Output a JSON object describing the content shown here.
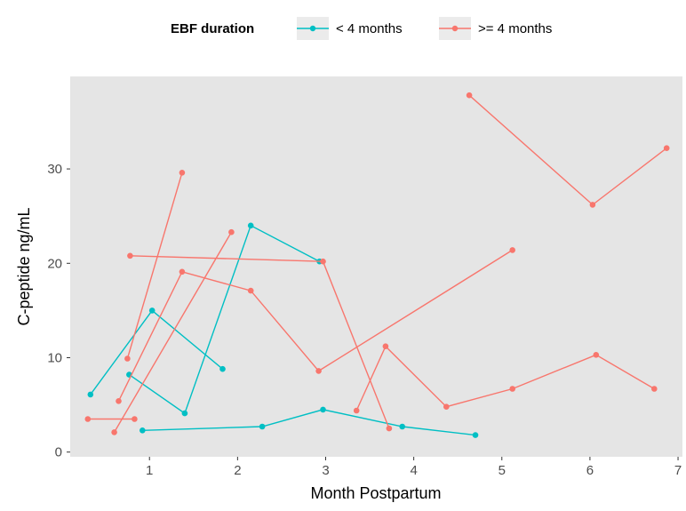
{
  "chart_data": {
    "type": "line",
    "xlabel": "Month Postpartum",
    "ylabel": "C-peptide ng/mL",
    "xlim": [
      0.1,
      7.05
    ],
    "ylim": [
      -0.5,
      39.8
    ],
    "x_ticks": [
      1,
      2,
      3,
      4,
      5,
      6,
      7
    ],
    "y_ticks": [
      0,
      10,
      20,
      30
    ],
    "x_tick_labels": [
      "1",
      "2",
      "3",
      "4",
      "5",
      "6",
      "7"
    ],
    "y_tick_labels": [
      "0",
      "10",
      "20",
      "30"
    ],
    "grid": false,
    "background": "gray",
    "legend": {
      "position": "top",
      "title": "EBF duration",
      "entries": [
        {
          "label": "< 4 months",
          "color": "#00bfc4"
        },
        {
          "label": ">= 4 months",
          "color": "#f8766d"
        }
      ]
    },
    "series": [
      {
        "group": "< 4 months",
        "color": "#00bfc4",
        "x": [
          0.33,
          1.03,
          1.83
        ],
        "y": [
          6.1,
          15.0,
          8.8
        ]
      },
      {
        "group": "< 4 months",
        "color": "#00bfc4",
        "x": [
          0.77,
          1.4,
          2.15,
          2.93
        ],
        "y": [
          8.2,
          4.1,
          24.0,
          20.2
        ]
      },
      {
        "group": "< 4 months",
        "color": "#00bfc4",
        "x": [
          0.92,
          2.28,
          2.97,
          3.87,
          4.7
        ],
        "y": [
          2.3,
          2.7,
          4.5,
          2.7,
          1.8
        ]
      },
      {
        "group": ">= 4 months",
        "color": "#f8766d",
        "x": [
          0.3,
          0.83
        ],
        "y": [
          3.5,
          3.5
        ]
      },
      {
        "group": ">= 4 months",
        "color": "#f8766d",
        "x": [
          0.75,
          1.37
        ],
        "y": [
          9.9,
          29.6
        ]
      },
      {
        "group": ">= 4 months",
        "color": "#f8766d",
        "x": [
          0.78,
          2.97,
          3.72
        ],
        "y": [
          20.8,
          20.2,
          2.5
        ]
      },
      {
        "group": ">= 4 months",
        "color": "#f8766d",
        "x": [
          0.6,
          1.93
        ],
        "y": [
          2.1,
          23.3
        ]
      },
      {
        "group": ">= 4 months",
        "color": "#f8766d",
        "x": [
          0.65,
          1.37,
          2.15,
          2.92,
          5.12
        ],
        "y": [
          5.4,
          19.1,
          17.1,
          8.6,
          21.4
        ]
      },
      {
        "group": ">= 4 months",
        "color": "#f8766d",
        "x": [
          3.35,
          3.68,
          4.37,
          5.12,
          6.07,
          6.73
        ],
        "y": [
          4.4,
          11.2,
          4.8,
          6.7,
          10.3,
          6.7
        ]
      },
      {
        "group": ">= 4 months",
        "color": "#f8766d",
        "x": [
          4.63,
          6.03,
          6.87
        ],
        "y": [
          37.8,
          26.2,
          32.2
        ]
      }
    ]
  }
}
